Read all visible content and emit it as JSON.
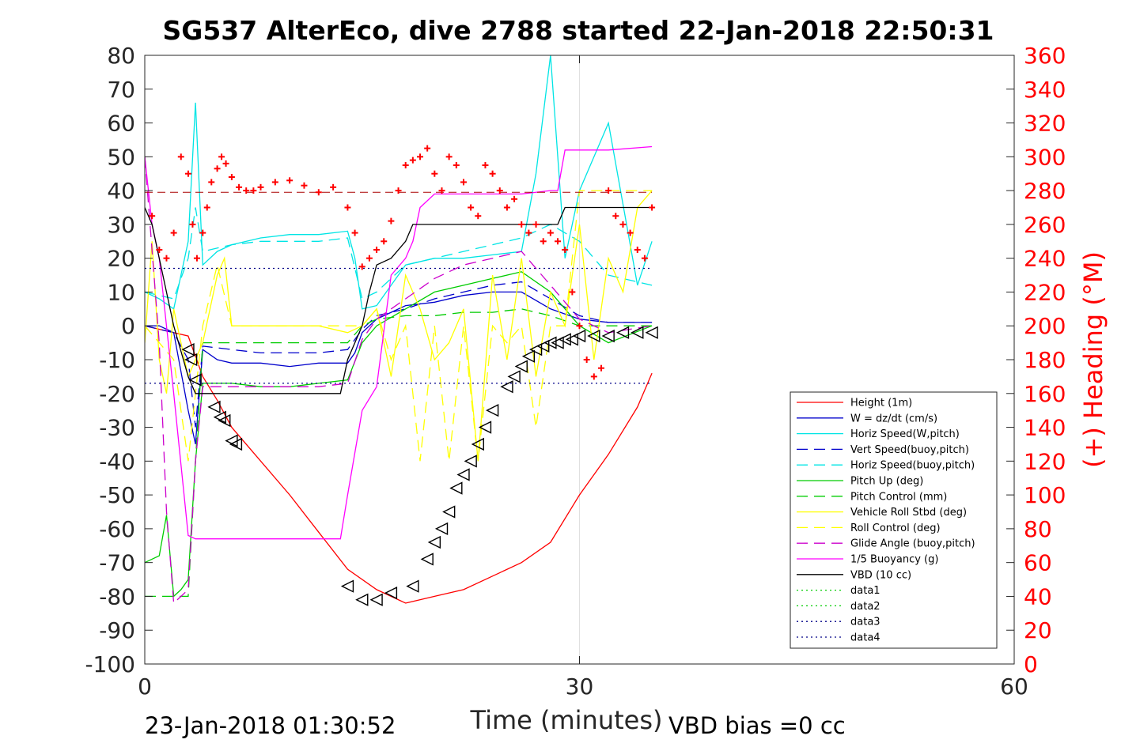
{
  "chart_data": {
    "type": "line",
    "title": "SG537 AlterEco, dive 2788 started 22-Jan-2018 22:50:31",
    "xlabel": "Time (minutes)",
    "ylabel_right": "(+) Heading (°M)",
    "footer_left": "23-Jan-2018 01:30:52",
    "footer_right": "VBD bias =0 cc",
    "xlim": [
      0,
      60
    ],
    "ylim": [
      -100,
      80
    ],
    "ylim_right": [
      0,
      360
    ],
    "xticks": [
      "0",
      "30",
      "60"
    ],
    "yticks_left": [
      "80",
      "70",
      "60",
      "50",
      "40",
      "30",
      "20",
      "10",
      "0",
      "-10",
      "-20",
      "-30",
      "-40",
      "-50",
      "-60",
      "-70",
      "-80",
      "-90",
      "-100"
    ],
    "yticks_right": [
      "360",
      "340",
      "320",
      "300",
      "280",
      "260",
      "240",
      "220",
      "200",
      "180",
      "160",
      "140",
      "120",
      "100",
      "80",
      "60",
      "40",
      "20",
      "0"
    ],
    "grid": "x at 30",
    "legend_position": "bottom-right",
    "colors": {
      "height": "#ff0000",
      "w": "#0000cc",
      "horiz_w": "#00e5e5",
      "vert_buoy": "#0000cc",
      "horiz_buoy": "#00e5e5",
      "pitch": "#00cc00",
      "pitch_ctl": "#00cc00",
      "roll": "#ffff00",
      "roll_ctl": "#ffff00",
      "glide": "#cc00cc",
      "buoy": "#ff00ff",
      "vbd": "#000000",
      "heading": "#ff0000"
    },
    "series": [
      {
        "key": "height",
        "name": "Height (1m)",
        "style": "solid",
        "color": "#ff0000",
        "x": [
          0,
          3,
          4,
          5,
          6,
          8,
          10,
          12,
          14,
          16,
          18,
          20,
          22,
          24,
          26,
          28,
          30,
          32,
          34,
          35
        ],
        "y": [
          0,
          -3,
          -15,
          -22,
          -30,
          -40,
          -50,
          -61,
          -72,
          -78,
          -82,
          -80,
          -78,
          -74,
          -70,
          -64,
          -50,
          -38,
          -24,
          -14
        ]
      },
      {
        "key": "w",
        "name": "W = dz/dt (cm/s)",
        "style": "solid",
        "color": "#0000cc",
        "x": [
          0,
          1,
          2,
          3,
          3.5,
          4,
          5,
          6,
          8,
          10,
          12,
          14,
          14.5,
          15,
          16,
          17,
          18,
          20,
          22,
          24,
          26,
          28,
          30,
          32,
          35
        ],
        "y": [
          0,
          0,
          -2,
          -25,
          -35,
          -7,
          -10,
          -11,
          -11,
          -12,
          -11,
          -11,
          -8,
          -2,
          2,
          4,
          6,
          7,
          9,
          10,
          10,
          5,
          2,
          1,
          1
        ]
      },
      {
        "key": "horiz_w",
        "name": "Horiz Speed(W,pitch)",
        "style": "solid",
        "color": "#00e5e5",
        "x": [
          0,
          1,
          2,
          3,
          3.5,
          4,
          5,
          6,
          8,
          10,
          12,
          14,
          14.5,
          15,
          16,
          17,
          18,
          20,
          22,
          24,
          26,
          27,
          28,
          29,
          30,
          32,
          34,
          35
        ],
        "y": [
          10,
          8,
          5,
          25,
          66,
          18,
          22,
          24,
          26,
          27,
          27,
          28,
          20,
          5,
          6,
          12,
          18,
          20,
          20,
          21,
          22,
          45,
          80,
          20,
          40,
          60,
          12,
          25
        ]
      },
      {
        "key": "vert_buoy",
        "name": "Vert Speed(buoy,pitch)",
        "style": "dashed",
        "color": "#0000cc",
        "x": [
          0,
          2,
          3,
          3.5,
          4,
          6,
          8,
          10,
          12,
          14,
          15,
          16,
          18,
          20,
          22,
          24,
          26,
          28,
          30,
          32,
          35
        ],
        "y": [
          0,
          -2,
          -10,
          -30,
          -6,
          -7,
          -8,
          -8,
          -8,
          -7,
          -1,
          3,
          5,
          8,
          10,
          12,
          13,
          8,
          3,
          1,
          1
        ]
      },
      {
        "key": "horiz_buoy",
        "name": "Horiz Speed(buoy,pitch)",
        "style": "dashed",
        "color": "#00e5e5",
        "x": [
          0,
          2,
          3,
          3.5,
          4,
          6,
          8,
          10,
          12,
          14,
          15,
          16,
          18,
          20,
          22,
          24,
          26,
          28,
          30,
          32,
          35
        ],
        "y": [
          10,
          8,
          20,
          35,
          22,
          24,
          25,
          25,
          25,
          26,
          8,
          10,
          18,
          20,
          22,
          24,
          26,
          30,
          25,
          15,
          12
        ]
      },
      {
        "key": "pitch",
        "name": "Pitch Up (deg)",
        "style": "solid",
        "color": "#00cc00",
        "x": [
          0,
          1,
          1.5,
          2,
          2.5,
          3,
          3.5,
          4,
          6,
          8,
          10,
          12,
          14,
          15,
          16,
          18,
          20,
          22,
          24,
          26,
          28,
          30,
          32,
          35
        ],
        "y": [
          -70,
          -68,
          -56,
          -80,
          -78,
          -75,
          -40,
          -17,
          -17,
          -18,
          -18,
          -17,
          -16,
          -5,
          0,
          5,
          10,
          12,
          14,
          16,
          10,
          0,
          -5,
          0
        ]
      },
      {
        "key": "pitch_ctl",
        "name": "Pitch Control (mm)",
        "style": "dashed",
        "color": "#00cc00",
        "x": [
          0,
          2,
          3,
          3.5,
          4,
          6,
          8,
          10,
          12,
          14,
          15,
          16,
          18,
          20,
          22,
          24,
          26,
          28,
          30,
          32,
          35
        ],
        "y": [
          -80,
          -80,
          -80,
          -40,
          -5,
          -5,
          -5,
          -5,
          -5,
          -5,
          0,
          2,
          3,
          3,
          4,
          4,
          5,
          3,
          0,
          0,
          0
        ]
      },
      {
        "key": "roll",
        "name": "Vehicle Roll Stbd (deg)",
        "style": "solid",
        "color": "#ffff00",
        "x": [
          0,
          0.5,
          1,
          1.5,
          2,
          3,
          4,
          5,
          5.5,
          6,
          7,
          8,
          10,
          12,
          14,
          15,
          16,
          17,
          18,
          19,
          20,
          21,
          22,
          23,
          24,
          25,
          26,
          27,
          28,
          29,
          30,
          31,
          32,
          33,
          34,
          35
        ],
        "y": [
          -5,
          25,
          -10,
          -20,
          5,
          -15,
          -5,
          15,
          20,
          0,
          0,
          0,
          0,
          0,
          -2,
          0,
          5,
          -15,
          15,
          5,
          -10,
          -5,
          5,
          -40,
          15,
          -10,
          20,
          -15,
          10,
          0,
          30,
          -10,
          20,
          10,
          35,
          40
        ]
      },
      {
        "key": "roll_ctl",
        "name": "Roll Control (deg)",
        "style": "dashed",
        "color": "#ffff00",
        "x": [
          0,
          2,
          3,
          4,
          5,
          6,
          8,
          10,
          12,
          14,
          15,
          16,
          17,
          18,
          19,
          20,
          21,
          22,
          23,
          24,
          25,
          26,
          27,
          28,
          29,
          30,
          32,
          35
        ],
        "y": [
          0,
          -10,
          -40,
          0,
          18,
          0,
          0,
          0,
          0,
          0,
          0,
          5,
          -10,
          0,
          -40,
          0,
          -40,
          0,
          -40,
          0,
          -5,
          0,
          -30,
          0,
          0,
          40,
          40,
          40
        ]
      },
      {
        "key": "glide",
        "name": "Glide Angle (buoy,pitch)",
        "style": "dashed",
        "color": "#cc00cc",
        "x": [
          0,
          1,
          1.5,
          2,
          2.5,
          3,
          3.5,
          4,
          6,
          8,
          10,
          12,
          14,
          15,
          16,
          18,
          20,
          22,
          24,
          26,
          28,
          30,
          32,
          35
        ],
        "y": [
          50,
          -5,
          -55,
          -82,
          -80,
          -78,
          -40,
          -18,
          -18,
          -18,
          -18,
          -18,
          -17,
          -4,
          2,
          8,
          14,
          18,
          20,
          22,
          12,
          2,
          -2,
          0
        ]
      },
      {
        "key": "buoy",
        "name": "1/5 Buoyancy (g)",
        "style": "solid",
        "color": "#ff00ff",
        "x": [
          0,
          0.5,
          1,
          2,
          3,
          3.5,
          8,
          12,
          13.5,
          14,
          15,
          16,
          17,
          18,
          18.5,
          19,
          20,
          22,
          24,
          26,
          28,
          28.5,
          29,
          30,
          32,
          35
        ],
        "y": [
          50,
          30,
          20,
          -20,
          -62,
          -63,
          -63,
          -63,
          -63,
          -50,
          -25,
          -18,
          15,
          20,
          25,
          35,
          39,
          39,
          39,
          39,
          40,
          40,
          52,
          52,
          52,
          53
        ]
      },
      {
        "key": "vbd",
        "name": "VBD (10 cc)",
        "style": "solid",
        "color": "#000000",
        "x": [
          0,
          0.5,
          1,
          2,
          3,
          3.5,
          8,
          12,
          13.5,
          14,
          15,
          15.5,
          16,
          17,
          18,
          18.5,
          19,
          20,
          22,
          24,
          26,
          28,
          28.5,
          29,
          30,
          32,
          35
        ],
        "y": [
          35,
          30,
          20,
          0,
          -15,
          -20,
          -20,
          -20,
          -20,
          -10,
          0,
          10,
          18,
          20,
          25,
          30,
          30,
          30,
          30,
          30,
          30,
          30,
          30,
          35,
          35,
          35,
          35
        ]
      },
      {
        "key": "data1",
        "name": "data1",
        "style": "dotted",
        "color": "#00cc00",
        "x": [],
        "y": []
      },
      {
        "key": "data2",
        "name": "data2",
        "style": "dotted",
        "color": "#00cc00",
        "x": [],
        "y": []
      },
      {
        "key": "data3",
        "name": "data3",
        "style": "dotted",
        "color": "#000088",
        "x": [
          0,
          35
        ],
        "y": [
          17,
          17
        ]
      },
      {
        "key": "data4",
        "name": "data4",
        "style": "dotted",
        "color": "#000088",
        "x": [
          0,
          35
        ],
        "y": [
          -17,
          -17
        ]
      }
    ],
    "heading_reference": {
      "heading": 279,
      "color": "#aa0000",
      "style": "dashed"
    },
    "heading_points": {
      "x": [
        0.5,
        1,
        1.5,
        2,
        2.5,
        3,
        3.3,
        3.6,
        4,
        4.3,
        4.6,
        5,
        5.3,
        5.6,
        6,
        6.5,
        7,
        7.5,
        8,
        9,
        10,
        11,
        12,
        13,
        14,
        14.5,
        15,
        15.5,
        16,
        16.5,
        17,
        17.5,
        18,
        18.5,
        19,
        19.5,
        20,
        20.5,
        21,
        21.5,
        22,
        22.5,
        23,
        23.5,
        24,
        24.5,
        25,
        25.5,
        26,
        26.5,
        27,
        27.5,
        28,
        28.5,
        29,
        29.5,
        30,
        30.5,
        31,
        31.5,
        32,
        32.5,
        33,
        33.5,
        34,
        34.5,
        35
      ],
      "y": [
        265,
        245,
        240,
        255,
        300,
        290,
        260,
        240,
        255,
        270,
        285,
        293,
        300,
        296,
        288,
        282,
        280,
        280,
        282,
        285,
        286,
        283,
        279,
        282,
        270,
        255,
        235,
        240,
        245,
        250,
        262,
        280,
        295,
        298,
        300,
        305,
        290,
        280,
        300,
        295,
        285,
        270,
        265,
        295,
        290,
        280,
        270,
        275,
        260,
        255,
        260,
        250,
        255,
        250,
        245,
        220,
        200,
        180,
        170,
        175,
        280,
        265,
        260,
        255,
        245,
        240,
        270
      ]
    },
    "markers": {
      "symbol": "triangle",
      "x": [
        3,
        3.2,
        3.5,
        4.8,
        5.2,
        5.5,
        6,
        6.3,
        14,
        15,
        16,
        17,
        18.5,
        19.5,
        20,
        20.5,
        21,
        21.5,
        22,
        22.5,
        23,
        23.5,
        24,
        25,
        25.5,
        26,
        26.5,
        27,
        27.5,
        28,
        28.5,
        29,
        29.5,
        30,
        31,
        32,
        33,
        34,
        35
      ],
      "y": [
        -7,
        -10,
        -16,
        -24,
        -27,
        -28,
        -34,
        -35,
        -77,
        -81,
        -81,
        -79,
        -77,
        -69,
        -64,
        -60,
        -55,
        -48,
        -44,
        -40,
        -35,
        -30,
        -25,
        -18,
        -15,
        -12,
        -9,
        -7,
        -6,
        -5,
        -5,
        -4,
        -4,
        -3,
        -3,
        -3,
        -2,
        -2,
        -2
      ]
    }
  },
  "legend_entries": [
    {
      "key": "height",
      "label": "Height (1m)"
    },
    {
      "key": "w",
      "label": "W = dz/dt (cm/s)"
    },
    {
      "key": "horiz_w",
      "label": "Horiz Speed(W,pitch)"
    },
    {
      "key": "vert_buoy",
      "label": "Vert Speed(buoy,pitch)"
    },
    {
      "key": "horiz_buoy",
      "label": "Horiz Speed(buoy,pitch)"
    },
    {
      "key": "pitch",
      "label": "Pitch Up (deg)"
    },
    {
      "key": "pitch_ctl",
      "label": "Pitch Control (mm)"
    },
    {
      "key": "roll",
      "label": "Vehicle Roll Stbd (deg)"
    },
    {
      "key": "roll_ctl",
      "label": "Roll Control (deg)"
    },
    {
      "key": "glide",
      "label": "Glide Angle (buoy,pitch)"
    },
    {
      "key": "buoy",
      "label": "1/5 Buoyancy (g)"
    },
    {
      "key": "vbd",
      "label": "VBD (10 cc)"
    },
    {
      "key": "data1",
      "label": "data1"
    },
    {
      "key": "data2",
      "label": "data2"
    },
    {
      "key": "data3",
      "label": "data3"
    },
    {
      "key": "data4",
      "label": "data4"
    }
  ]
}
